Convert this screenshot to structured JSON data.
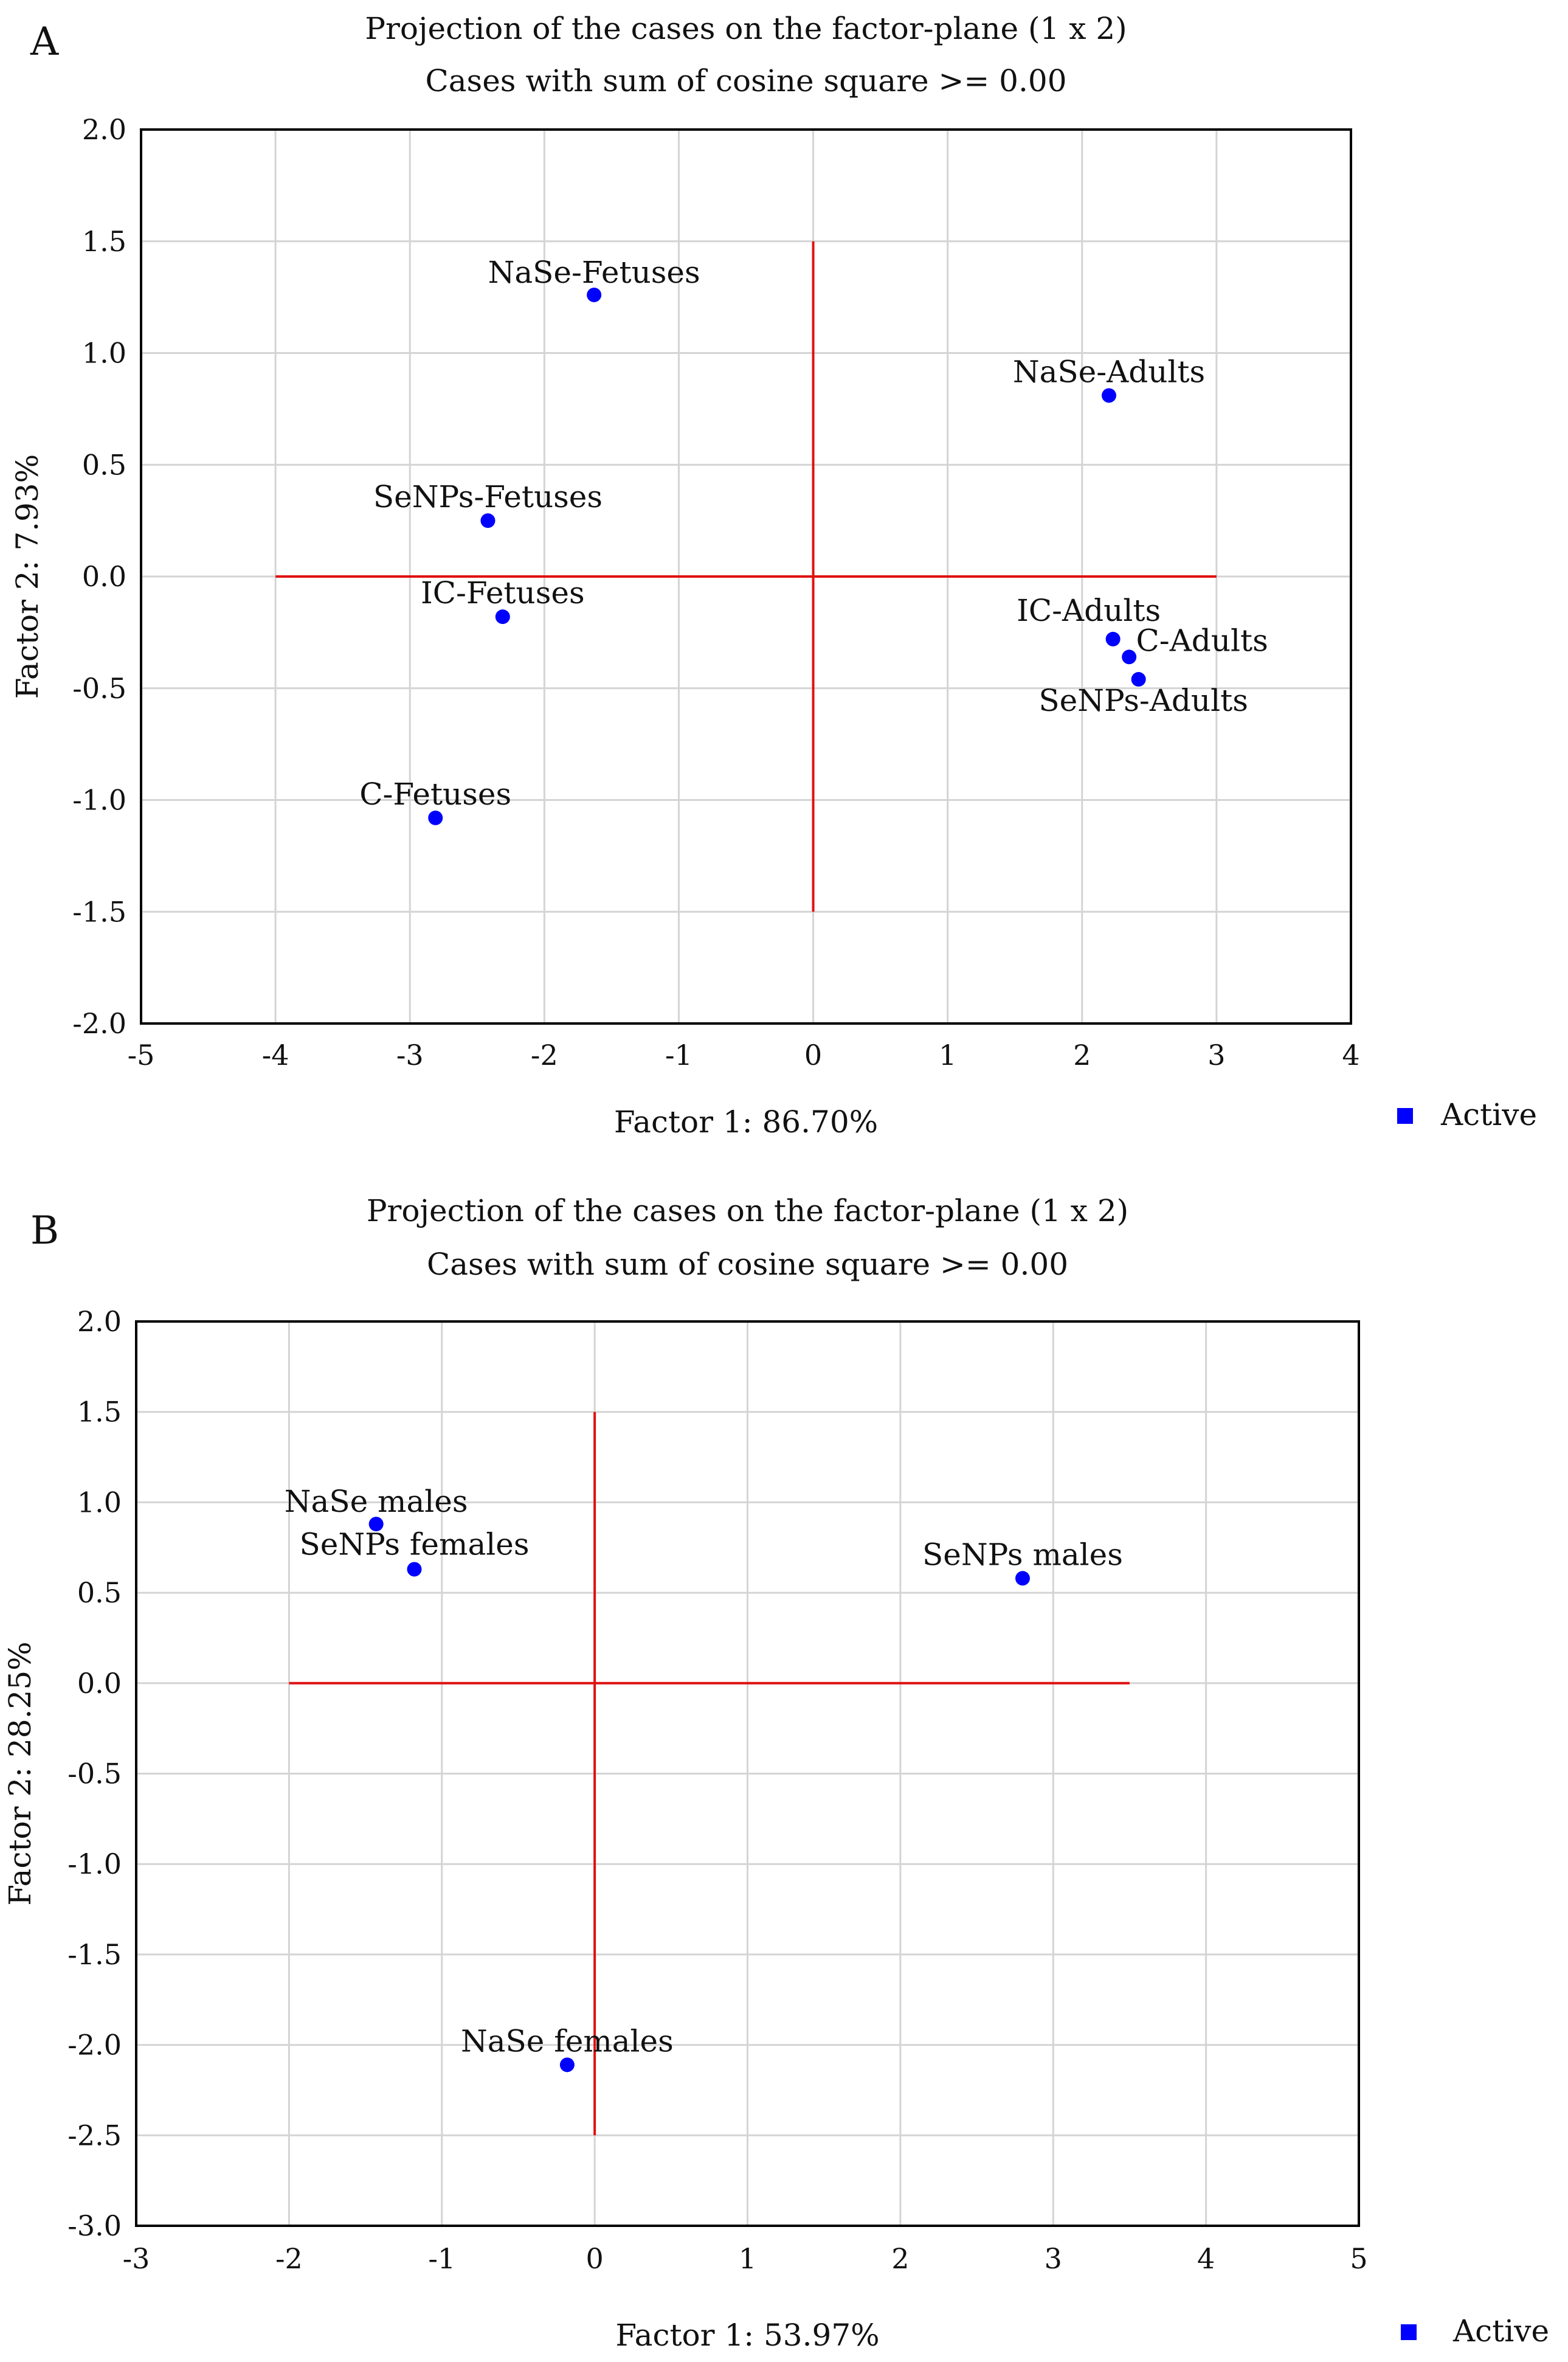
{
  "chart_data": [
    {
      "panel": "A",
      "type": "scatter",
      "title": "Projection of the cases on the factor-plane (1 x 2)",
      "subtitle": "Cases with sum of cosine square >=  0.00",
      "xlabel": "Factor 1: 86.70%",
      "ylabel": "Factor 2:  7.93%",
      "xlim": [
        -5,
        4
      ],
      "ylim": [
        -2.0,
        2.0
      ],
      "xticks": [
        "-5",
        "-4",
        "-3",
        "-2",
        "-1",
        "0",
        "1",
        "2",
        "3",
        "4"
      ],
      "yticks": [
        "2.0",
        "1.5",
        "1.0",
        "0.5",
        "0.0",
        "-0.5",
        "-1.0",
        "-1.5",
        "-2.0"
      ],
      "grid": true,
      "legend": {
        "label": "Active",
        "color": "#0000ff",
        "placement": "bottom-right"
      },
      "reference_lines": {
        "horizontal": {
          "y": 0,
          "x_from": -4,
          "x_to": 3
        },
        "vertical": {
          "x": 0,
          "y_from": -1.5,
          "y_to": 1.5
        },
        "color": "#e01010"
      },
      "points": [
        {
          "label": "NaSe-Fetuses",
          "x": -1.63,
          "y": 1.26
        },
        {
          "label": "NaSe-Adults",
          "x": 2.2,
          "y": 0.81
        },
        {
          "label": "SeNPs-Fetuses",
          "x": -2.42,
          "y": 0.25
        },
        {
          "label": "IC-Fetuses",
          "x": -2.31,
          "y": -0.18
        },
        {
          "label": "IC-Adults",
          "x": 2.23,
          "y": -0.28
        },
        {
          "label": "C-Adults",
          "x": 2.35,
          "y": -0.36
        },
        {
          "label": "SeNPs-Adults",
          "x": 2.42,
          "y": -0.46
        },
        {
          "label": "C-Fetuses",
          "x": -2.81,
          "y": -1.08
        }
      ]
    },
    {
      "panel": "B",
      "type": "scatter",
      "title": "Projection of the cases on the factor-plane (1 x 2)",
      "subtitle": "Cases with sum of cosine square >=  0.00",
      "xlabel": "Factor 1: 53.97%",
      "ylabel": "Factor 2: 28.25%",
      "xlim": [
        -3,
        5
      ],
      "ylim": [
        -3.0,
        2.0
      ],
      "xticks": [
        "-3",
        "-2",
        "-1",
        "0",
        "1",
        "2",
        "3",
        "4",
        "5"
      ],
      "yticks": [
        "2.0",
        "1.5",
        "1.0",
        "0.5",
        "0.0",
        "-0.5",
        "-1.0",
        "-1.5",
        "-2.0",
        "-2.5",
        "-3.0"
      ],
      "grid": true,
      "legend": {
        "label": "Active",
        "color": "#0000ff",
        "placement": "bottom-right"
      },
      "reference_lines": {
        "horizontal": {
          "y": 0,
          "x_from": -2,
          "x_to": 3.5
        },
        "vertical": {
          "x": 0,
          "y_from": -2.5,
          "y_to": 1.5
        },
        "color": "#e01010"
      },
      "points": [
        {
          "label": "NaSe males",
          "x": -1.43,
          "y": 0.88
        },
        {
          "label": "SeNPs females",
          "x": -1.18,
          "y": 0.63
        },
        {
          "label": "SeNPs males",
          "x": 2.8,
          "y": 0.58
        },
        {
          "label": "NaSe females",
          "x": -0.18,
          "y": -2.11
        }
      ]
    }
  ]
}
